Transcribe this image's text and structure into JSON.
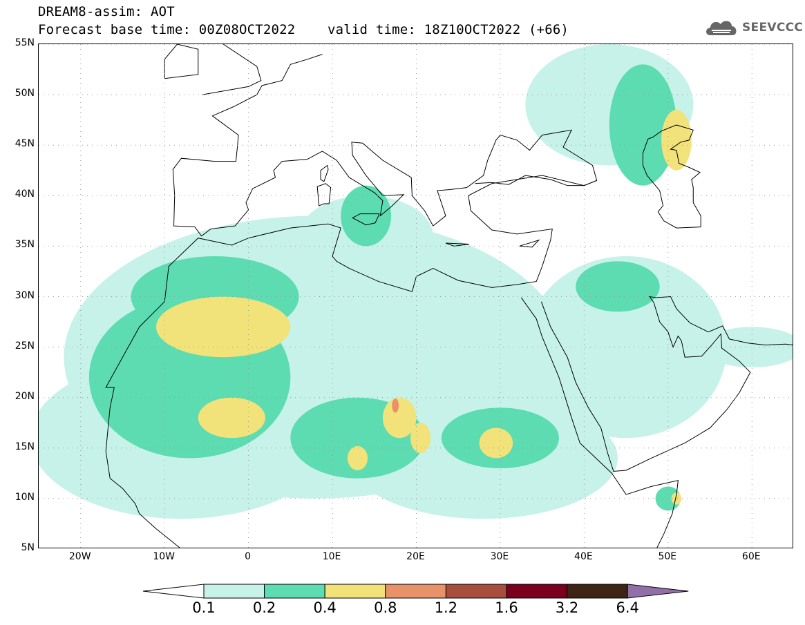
{
  "header": {
    "title_line1": "DREAM8-assim: AOT",
    "title_line2": "Forecast base time: 00Z08OCT2022    valid time: 18Z10OCT2022 (+66)"
  },
  "logo": {
    "text": "SEEVCCC",
    "icon": "cloud-icon"
  },
  "map": {
    "lon_range": [
      -25,
      65
    ],
    "lat_range": [
      5,
      55
    ],
    "lat_ticks": [
      {
        "value": 55,
        "label": "55N"
      },
      {
        "value": 50,
        "label": "50N"
      },
      {
        "value": 45,
        "label": "45N"
      },
      {
        "value": 40,
        "label": "40N"
      },
      {
        "value": 35,
        "label": "35N"
      },
      {
        "value": 30,
        "label": "30N"
      },
      {
        "value": 25,
        "label": "25N"
      },
      {
        "value": 20,
        "label": "20N"
      },
      {
        "value": 15,
        "label": "15N"
      },
      {
        "value": 10,
        "label": "10N"
      },
      {
        "value": 5,
        "label": "5N"
      }
    ],
    "lon_ticks": [
      {
        "value": -20,
        "label": "20W"
      },
      {
        "value": -10,
        "label": "10W"
      },
      {
        "value": 0,
        "label": "0"
      },
      {
        "value": 10,
        "label": "10E"
      },
      {
        "value": 20,
        "label": "20E"
      },
      {
        "value": 30,
        "label": "30E"
      },
      {
        "value": 40,
        "label": "40E"
      },
      {
        "value": 50,
        "label": "50E"
      },
      {
        "value": 60,
        "label": "60E"
      }
    ],
    "grid": "dotted",
    "field": [
      {
        "level": 0.1,
        "center": [
          8,
          24
        ],
        "radius": [
          30,
          14
        ]
      },
      {
        "level": 0.1,
        "center": [
          -8,
          16
        ],
        "radius": [
          18,
          8
        ]
      },
      {
        "level": 0.1,
        "center": [
          28,
          14
        ],
        "radius": [
          16,
          6
        ]
      },
      {
        "level": 0.1,
        "center": [
          45,
          25
        ],
        "radius": [
          12,
          9
        ]
      },
      {
        "level": 0.1,
        "center": [
          43,
          49
        ],
        "radius": [
          10,
          6
        ]
      },
      {
        "level": 0.1,
        "center": [
          14,
          36
        ],
        "radius": [
          8,
          4
        ]
      },
      {
        "level": 0.1,
        "center": [
          60,
          25
        ],
        "radius": [
          6,
          2
        ]
      },
      {
        "level": 0.2,
        "center": [
          -7,
          22
        ],
        "radius": [
          12,
          8
        ]
      },
      {
        "level": 0.2,
        "center": [
          -4,
          30
        ],
        "radius": [
          10,
          4
        ]
      },
      {
        "level": 0.2,
        "center": [
          13,
          16
        ],
        "radius": [
          8,
          4
        ]
      },
      {
        "level": 0.2,
        "center": [
          30,
          16
        ],
        "radius": [
          7,
          3
        ]
      },
      {
        "level": 0.2,
        "center": [
          47,
          47
        ],
        "radius": [
          4,
          6
        ]
      },
      {
        "level": 0.2,
        "center": [
          44,
          31
        ],
        "radius": [
          5,
          2.5
        ]
      },
      {
        "level": 0.2,
        "center": [
          14,
          38
        ],
        "radius": [
          3,
          3
        ]
      },
      {
        "level": 0.2,
        "center": [
          50,
          10
        ],
        "radius": [
          1.5,
          1.2
        ]
      },
      {
        "level": 0.4,
        "center": [
          -3,
          27
        ],
        "radius": [
          8,
          3
        ]
      },
      {
        "level": 0.4,
        "center": [
          -2,
          18
        ],
        "radius": [
          4,
          2
        ]
      },
      {
        "level": 0.4,
        "center": [
          18,
          18
        ],
        "radius": [
          2,
          2
        ]
      },
      {
        "level": 0.4,
        "center": [
          13,
          14
        ],
        "radius": [
          1.2,
          1.2
        ]
      },
      {
        "level": 0.4,
        "center": [
          20.5,
          16
        ],
        "radius": [
          1.2,
          1.5
        ]
      },
      {
        "level": 0.4,
        "center": [
          29.5,
          15.5
        ],
        "radius": [
          2,
          1.5
        ]
      },
      {
        "level": 0.4,
        "center": [
          51,
          45.5
        ],
        "radius": [
          1.8,
          3
        ]
      },
      {
        "level": 0.4,
        "center": [
          51,
          10
        ],
        "radius": [
          0.6,
          0.6
        ]
      },
      {
        "level": 0.8,
        "center": [
          17.5,
          19.2
        ],
        "radius": [
          0.4,
          0.7
        ]
      }
    ]
  },
  "colorbar": {
    "colors": [
      "#ffffff",
      "#c6f2e9",
      "#5cdcb0",
      "#f2e27a",
      "#e8926a",
      "#a84e3e",
      "#7a001e",
      "#3d2414",
      "#9170a8"
    ],
    "labels": [
      "0.1",
      "0.2",
      "0.4",
      "0.8",
      "1.2",
      "1.6",
      "3.2",
      "6.4"
    ]
  }
}
